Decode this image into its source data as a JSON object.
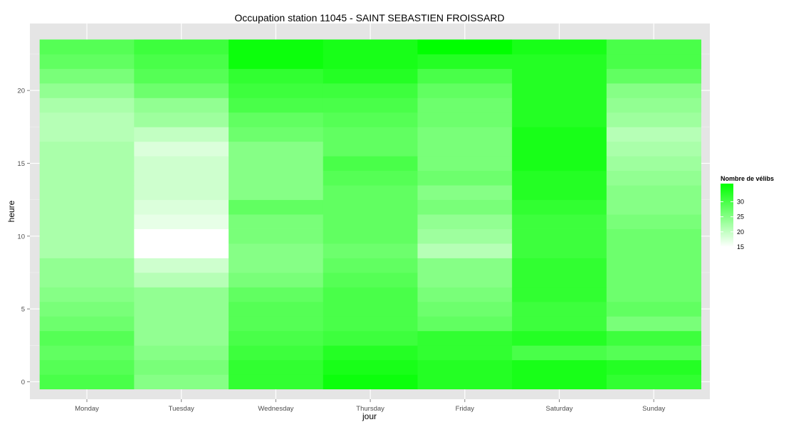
{
  "chart_data": {
    "type": "heatmap",
    "title": "Occupation station 11045 - SAINT SEBASTIEN FROISSARD",
    "xlabel": "jour",
    "ylabel": "heure",
    "x_categories": [
      "Monday",
      "Tuesday",
      "Wednesday",
      "Thursday",
      "Friday",
      "Saturday",
      "Sunday"
    ],
    "y_values": [
      0,
      1,
      2,
      3,
      4,
      5,
      6,
      7,
      8,
      9,
      10,
      11,
      12,
      13,
      14,
      15,
      16,
      17,
      18,
      19,
      20,
      21,
      22,
      23
    ],
    "y_ticks": [
      "0",
      "5",
      "10",
      "15",
      "20"
    ],
    "y_tick_values": [
      0,
      5,
      10,
      15,
      20
    ],
    "ylim": [
      -1.2,
      24.6
    ],
    "grid": true,
    "values": [
      [
        30,
        25,
        32,
        35,
        33,
        34,
        32
      ],
      [
        29,
        26,
        32,
        34,
        33,
        34,
        33
      ],
      [
        28,
        25,
        31,
        33,
        32,
        30,
        29
      ],
      [
        29,
        24,
        30,
        31,
        32,
        33,
        31
      ],
      [
        27,
        24,
        29,
        30,
        28,
        31,
        26
      ],
      [
        26,
        24,
        29,
        30,
        27,
        31,
        28
      ],
      [
        25,
        24,
        28,
        30,
        26,
        32,
        27
      ],
      [
        24,
        21,
        26,
        29,
        25,
        32,
        27
      ],
      [
        24,
        19,
        25,
        28,
        25,
        32,
        27
      ],
      [
        22,
        15,
        25,
        27,
        21,
        31,
        27
      ],
      [
        22,
        15,
        26,
        28,
        23,
        31,
        27
      ],
      [
        22,
        17,
        26,
        28,
        24,
        31,
        26
      ],
      [
        22,
        18,
        28,
        28,
        26,
        32,
        25
      ],
      [
        22,
        19,
        25,
        28,
        25,
        33,
        25
      ],
      [
        22,
        19,
        25,
        29,
        27,
        33,
        24
      ],
      [
        22,
        19,
        25,
        30,
        26,
        34,
        23
      ],
      [
        22,
        18,
        25,
        28,
        26,
        34,
        22
      ],
      [
        21,
        20,
        27,
        28,
        26,
        34,
        21
      ],
      [
        21,
        23,
        28,
        29,
        27,
        33,
        23
      ],
      [
        22,
        24,
        30,
        30,
        27,
        33,
        24
      ],
      [
        24,
        27,
        31,
        31,
        28,
        33,
        25
      ],
      [
        26,
        29,
        32,
        33,
        30,
        33,
        28
      ],
      [
        28,
        30,
        35,
        34,
        33,
        33,
        30
      ],
      [
        29,
        31,
        35,
        34,
        36,
        34,
        30
      ]
    ],
    "color_scale": {
      "low": 15,
      "high": 36,
      "low_color": "#ffffff",
      "high_color": "#00ff00"
    },
    "legend": {
      "title": "Nombre de vélibs",
      "position": "right",
      "ticks": [
        "15",
        "20",
        "25",
        "30"
      ],
      "tick_values": [
        15,
        20,
        25,
        30
      ]
    }
  }
}
